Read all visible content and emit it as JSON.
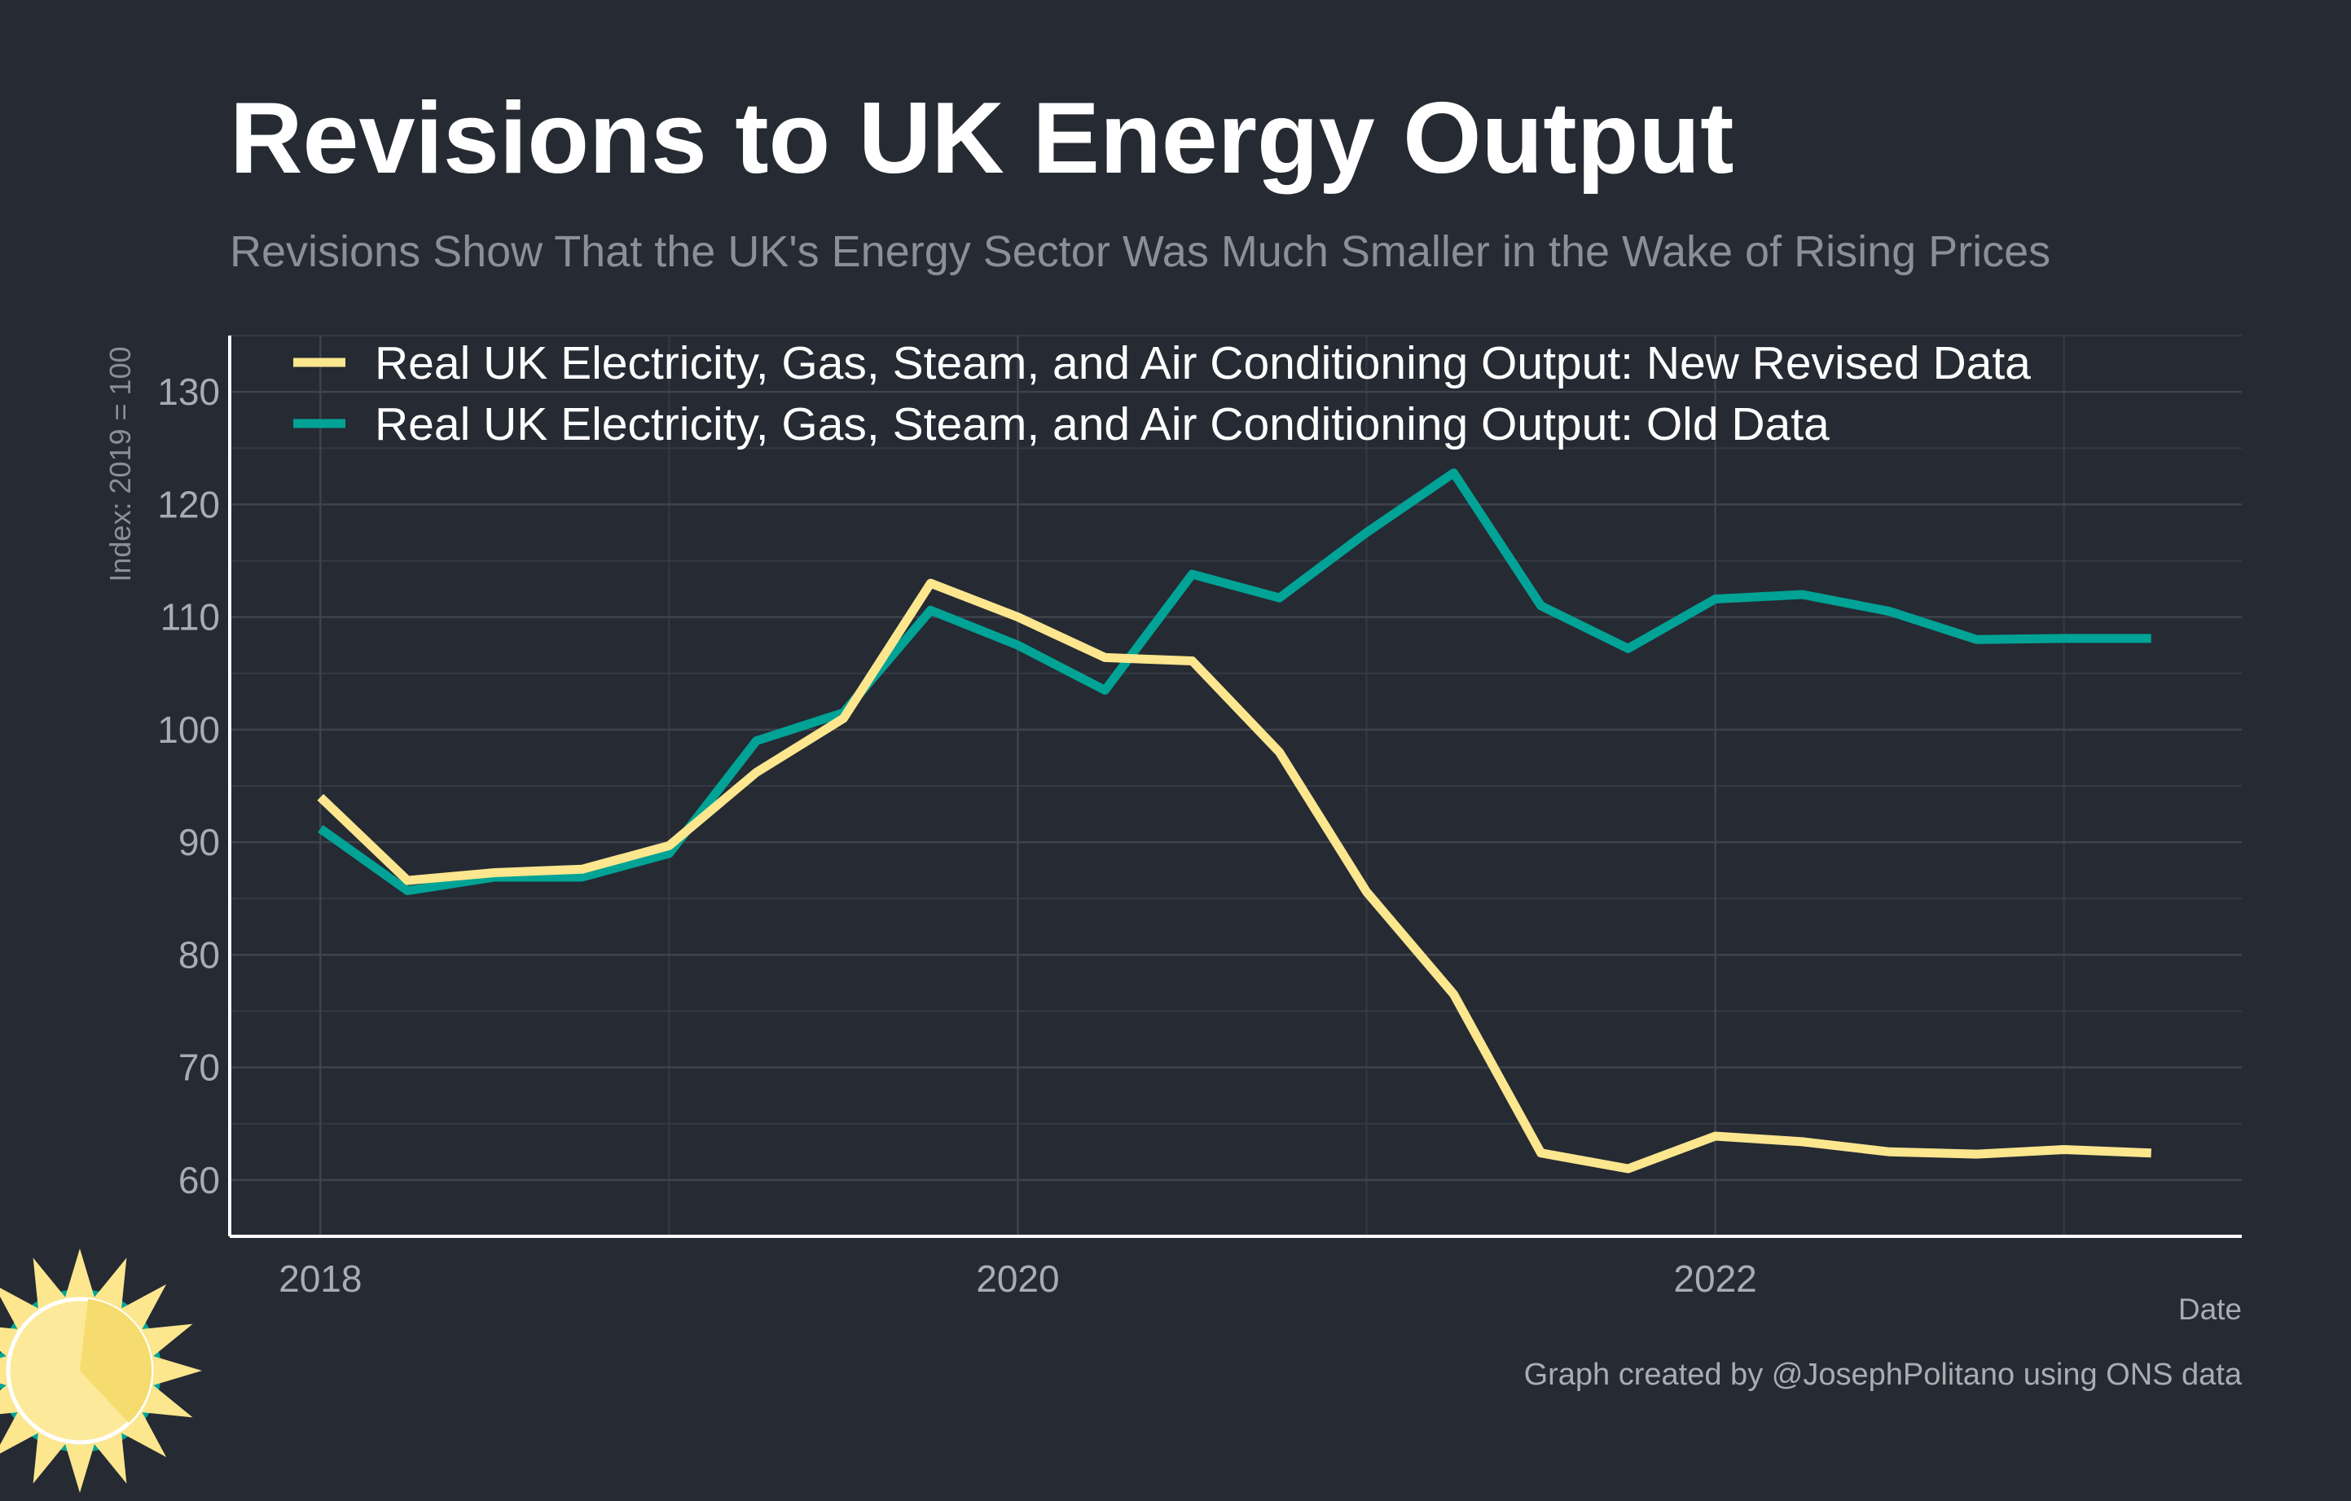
{
  "title": "Revisions to UK Energy Output",
  "subtitle": "Revisions Show That the UK's Energy Sector Was Much Smaller in the Wake of Rising Prices",
  "caption": "Graph created by @JosephPolitano using ONS data",
  "colors": {
    "background": "#252a33",
    "new_series": "#fce68e",
    "old_series": "#00a396",
    "grid": "#3e434c",
    "axis": "#ffffff",
    "logo_sun": "#fce68e",
    "logo_ring": "#00a396"
  },
  "logo": {
    "icon": "sun-logo-icon"
  },
  "chart_data": {
    "type": "line",
    "xlabel": "Date",
    "ylabel": "Index: 2019 = 100",
    "xlim": [
      2017.74,
      2023.51
    ],
    "ylim": [
      55,
      135
    ],
    "x_ticks": [
      2018,
      2020,
      2022
    ],
    "x_tick_labels": [
      "2018",
      "2020",
      "2022"
    ],
    "y_ticks": [
      60,
      70,
      80,
      90,
      100,
      110,
      120,
      130
    ],
    "y_tick_labels": [
      "60",
      "70",
      "80",
      "90",
      "100",
      "110",
      "120",
      "130"
    ],
    "grid": true,
    "legend_position": "top-left",
    "x": [
      2018.0,
      2018.25,
      2018.5,
      2018.75,
      2019.0,
      2019.25,
      2019.5,
      2019.75,
      2020.0,
      2020.25,
      2020.5,
      2020.75,
      2021.0,
      2021.25,
      2021.5,
      2021.75,
      2022.0,
      2022.25,
      2022.5,
      2022.75,
      2023.0,
      2023.25
    ],
    "series": [
      {
        "name": "Real UK Electricity, Gas, Steam, and Air Conditioning Output: New Revised Data",
        "color": "#fce68e",
        "values": [
          94.0,
          86.6,
          87.3,
          87.6,
          89.7,
          96.2,
          101.0,
          113.0,
          110.0,
          106.4,
          106.1,
          98.0,
          85.6,
          76.5,
          62.4,
          61.0,
          63.9,
          63.4,
          62.5,
          62.3,
          62.7,
          62.4
        ]
      },
      {
        "name": "Real UK Electricity, Gas, Steam, and Air Conditioning Output: Old Data",
        "color": "#00a396",
        "values": [
          91.2,
          85.7,
          86.9,
          86.9,
          89.0,
          99.0,
          101.5,
          110.6,
          107.5,
          103.5,
          113.8,
          111.7,
          117.5,
          122.8,
          111.0,
          107.2,
          111.6,
          112.0,
          110.5,
          108.0,
          108.1,
          108.1
        ]
      }
    ]
  }
}
